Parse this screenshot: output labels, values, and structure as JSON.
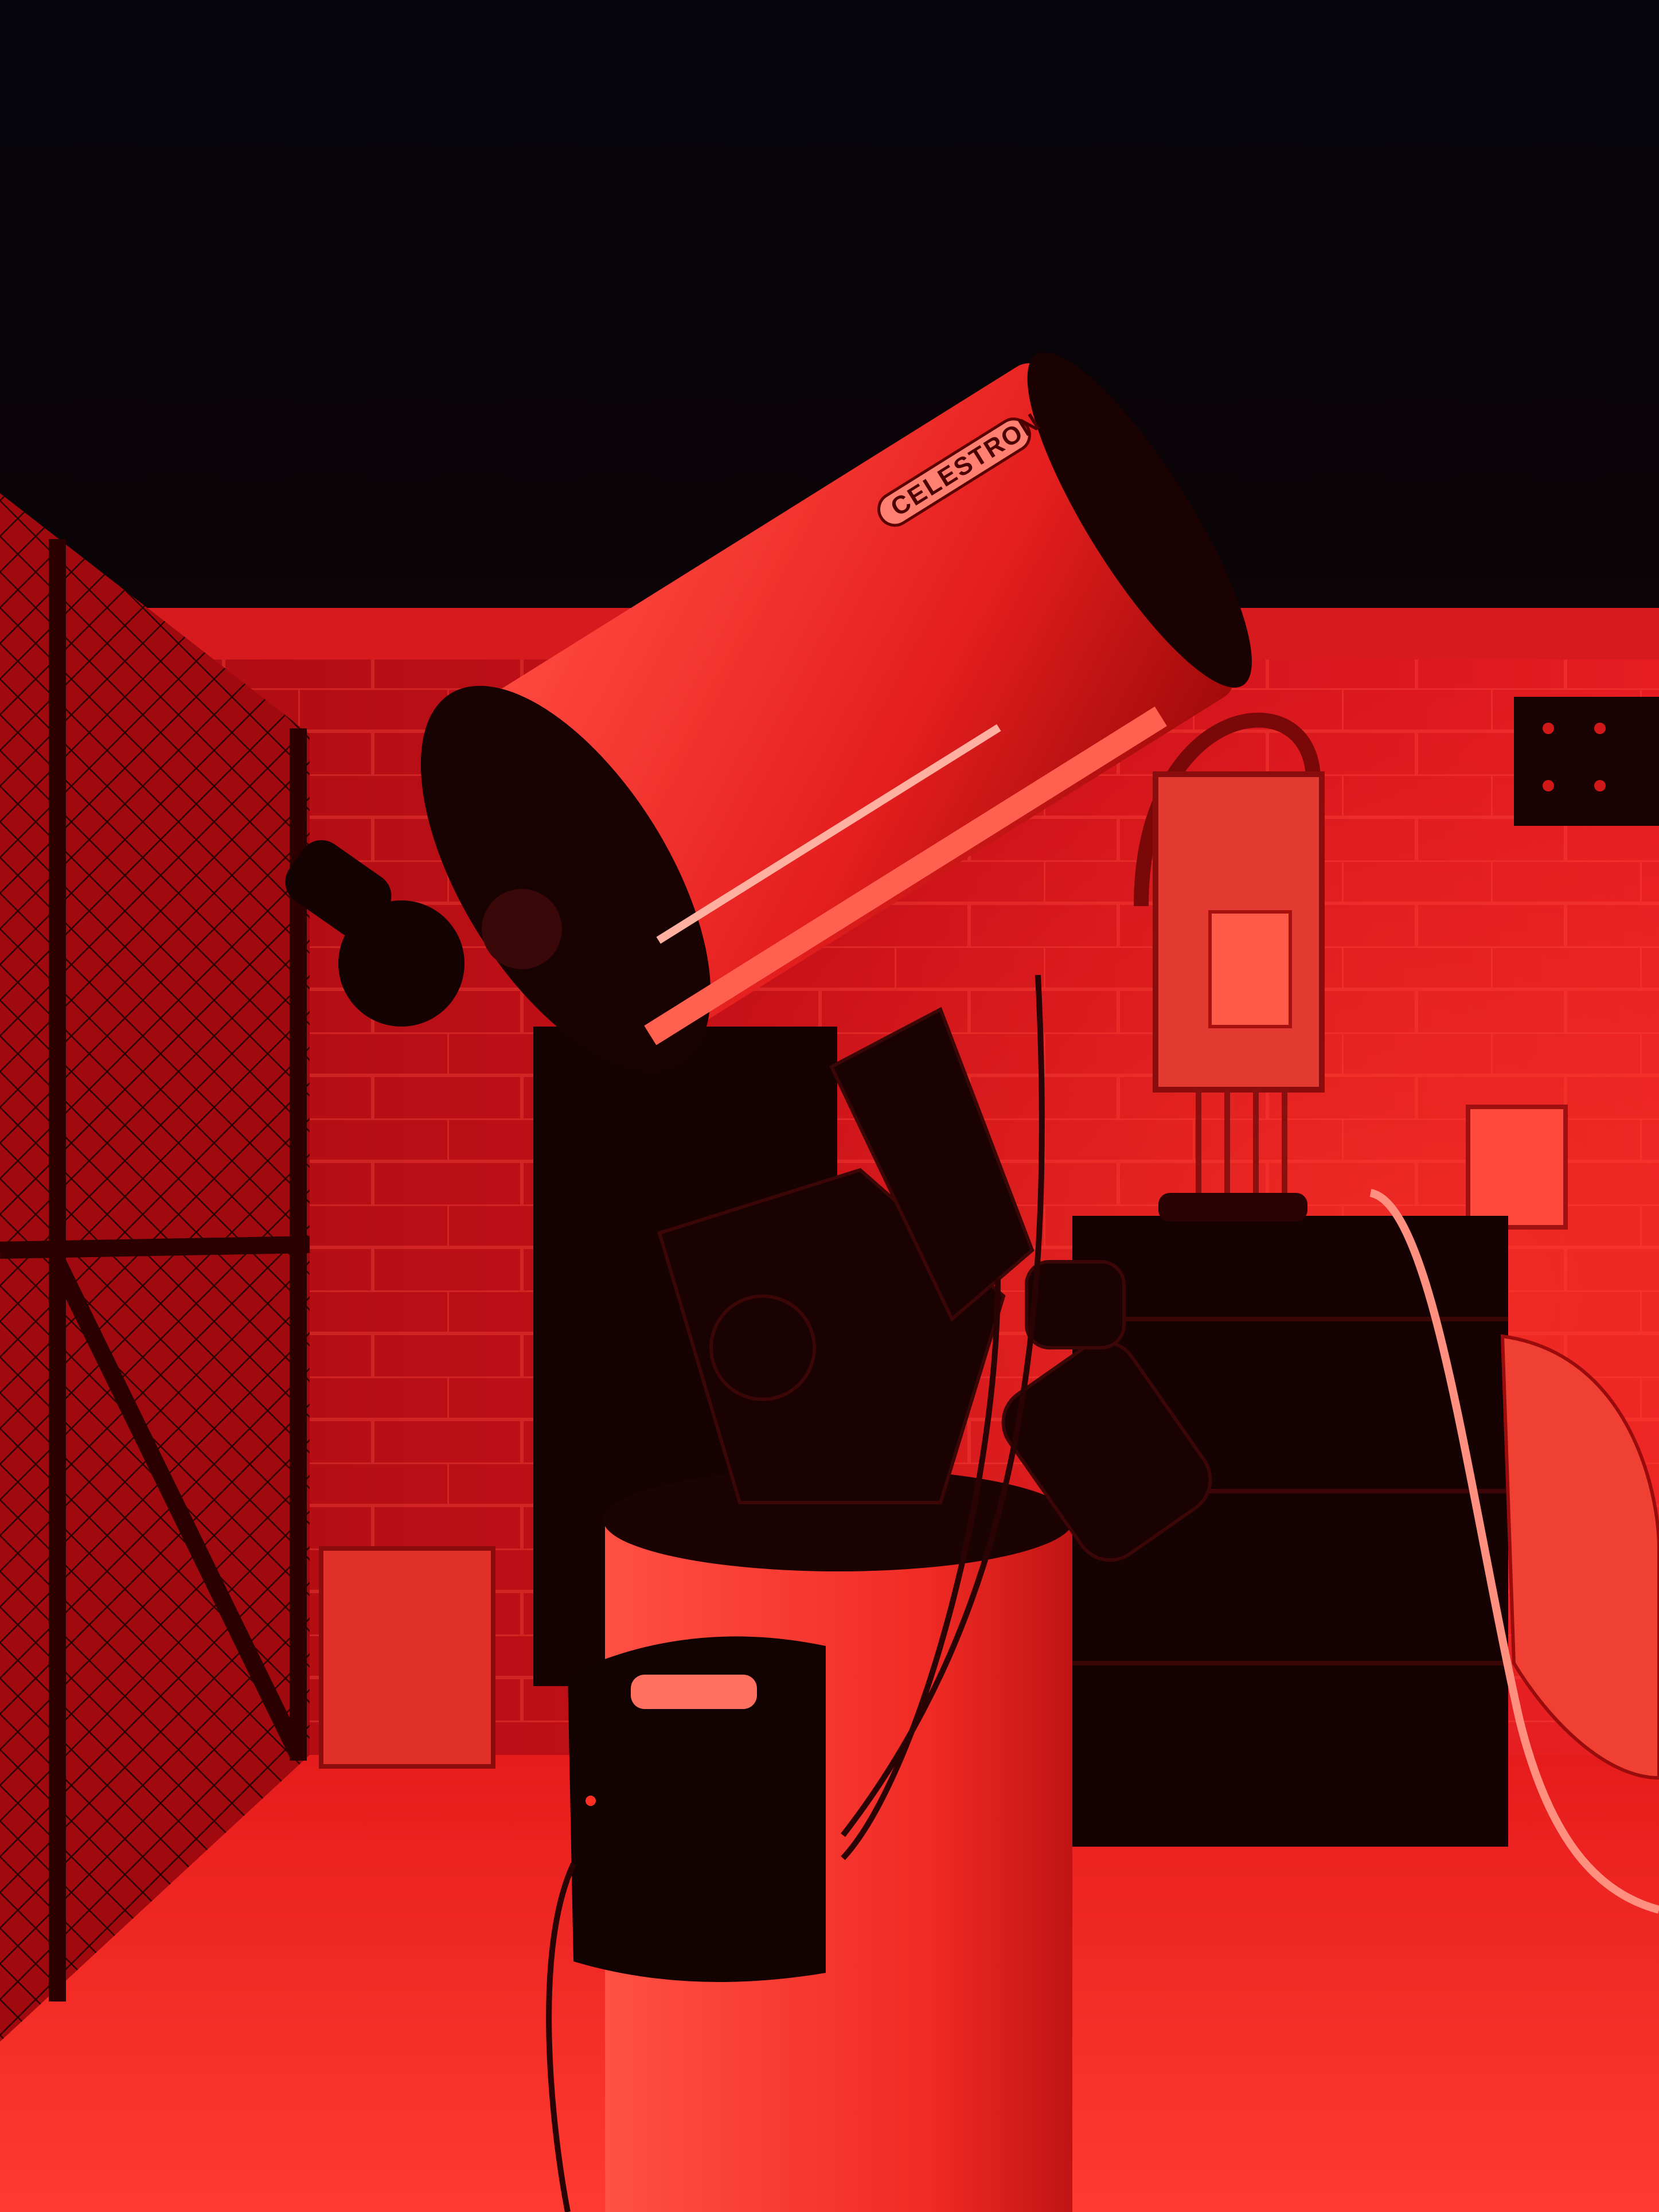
{
  "photo": {
    "telescope_brand": "CELESTRON"
  },
  "colors": {
    "night_sky": "#04030a",
    "wall_red": "#c8101a",
    "floor_red": "#ff2a2a",
    "tube_red": "#ee2424",
    "dark_metal": "#1a0202",
    "cabinet": "#150202"
  }
}
